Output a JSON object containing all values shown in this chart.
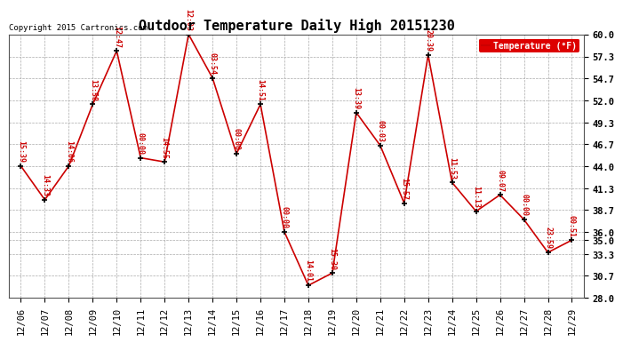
{
  "title": "Outdoor Temperature Daily High 20151230",
  "copyright": "Copyright 2015 Cartronics.com",
  "legend_label": "Temperature (°F)",
  "dates": [
    "12/06",
    "12/07",
    "12/08",
    "12/09",
    "12/10",
    "12/11",
    "12/12",
    "12/13",
    "12/14",
    "12/15",
    "12/16",
    "12/17",
    "12/18",
    "12/19",
    "12/20",
    "12/21",
    "12/22",
    "12/23",
    "12/24",
    "12/25",
    "12/26",
    "12/27",
    "12/28",
    "12/29"
  ],
  "temps": [
    44.0,
    39.9,
    44.0,
    51.5,
    58.0,
    45.0,
    44.5,
    60.0,
    54.7,
    45.5,
    51.5,
    36.0,
    29.5,
    31.0,
    50.5,
    46.5,
    39.5,
    57.5,
    42.0,
    38.5,
    40.5,
    37.5,
    33.5,
    35.0
  ],
  "time_labels": [
    "15:39",
    "14:33",
    "14:06",
    "13:58",
    "12:47",
    "00:00",
    "14:55",
    "12:03",
    "03:54",
    "00:00",
    "14:51",
    "00:00",
    "14:01",
    "15:30",
    "13:39",
    "00:03",
    "15:57",
    "20:39",
    "11:53",
    "11:13",
    "09:07",
    "00:00",
    "23:59",
    "00:51"
  ],
  "line_color": "#cc0000",
  "marker_color": "#000000",
  "bg_color": "#ffffff",
  "grid_color": "#aaaaaa",
  "ylim": [
    28.0,
    60.0
  ],
  "yticks": [
    28.0,
    30.7,
    33.3,
    35.0,
    36.0,
    38.7,
    41.3,
    44.0,
    46.7,
    49.3,
    52.0,
    54.7,
    57.3,
    60.0
  ],
  "title_fontsize": 11,
  "tick_fontsize": 7.5,
  "label_fontsize": 6,
  "fig_width": 6.9,
  "fig_height": 3.75,
  "dpi": 100
}
